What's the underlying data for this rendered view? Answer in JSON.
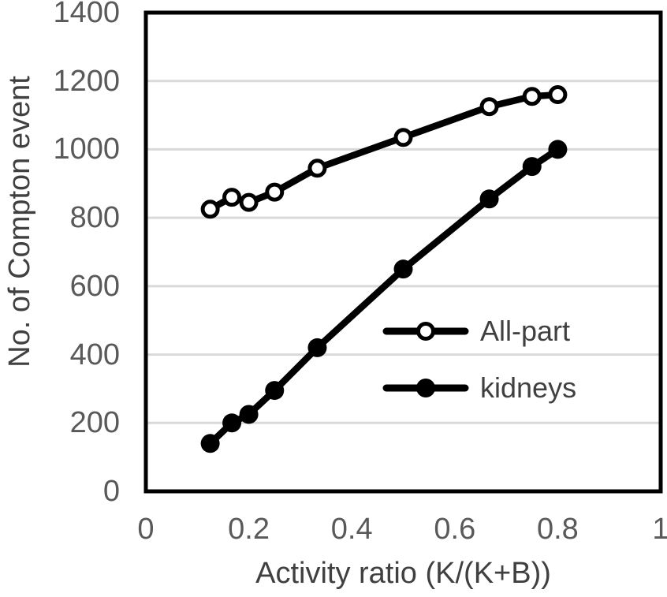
{
  "chart_data": {
    "type": "line",
    "title": "",
    "xlabel": "Activity ratio (K/(K+B))",
    "ylabel": "No. of Compton event",
    "x": [
      0.125,
      0.167,
      0.2,
      0.25,
      0.333,
      0.5,
      0.667,
      0.75,
      0.8
    ],
    "series": [
      {
        "name": "All-part",
        "marker": "open-circle",
        "color": "#000000",
        "values": [
          825,
          860,
          845,
          875,
          945,
          1035,
          1125,
          1155,
          1160
        ]
      },
      {
        "name": "kidneys",
        "marker": "filled-circle",
        "color": "#000000",
        "values": [
          140,
          200,
          225,
          295,
          420,
          650,
          855,
          950,
          1000
        ]
      }
    ],
    "xlim": [
      0,
      1
    ],
    "ylim": [
      0,
      1400
    ],
    "x_ticks": [
      0,
      0.2,
      0.4,
      0.6,
      0.8,
      1
    ],
    "x_tick_labels": [
      "0",
      "0.2",
      "0.4",
      "0.6",
      "0.8",
      "1"
    ],
    "y_ticks": [
      0,
      200,
      400,
      600,
      800,
      1000,
      1200,
      1400
    ],
    "y_tick_labels": [
      "0",
      "200",
      "400",
      "600",
      "800",
      "1000",
      "1200",
      "1400"
    ],
    "grid": "horizontal",
    "legend_position": "inside-right-middle",
    "colors": {
      "series": "#000000",
      "grid": "#d9d9d9",
      "border": "#000000",
      "tick_label": "#595959",
      "axis_title": "#404040",
      "legend_text": "#404040",
      "background": "#ffffff"
    }
  }
}
